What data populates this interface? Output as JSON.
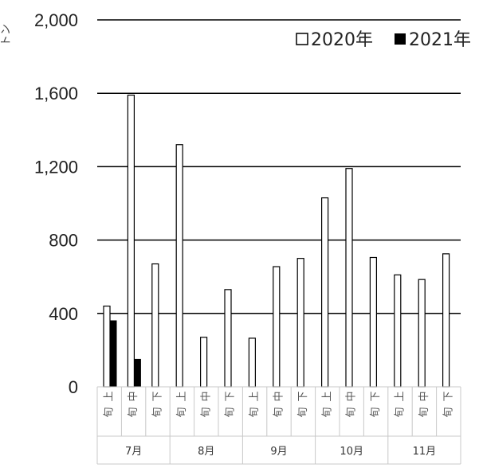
{
  "chart_data": {
    "type": "bar",
    "ylabel": "トン",
    "ylim": [
      0,
      2000
    ],
    "yticks": [
      0,
      400,
      800,
      1200,
      1600,
      2000
    ],
    "ytick_labels": [
      "0",
      "400",
      "800",
      "1,200",
      "1,600",
      "2,000"
    ],
    "grid": true,
    "legend_position": "top-right",
    "months": [
      "7月",
      "8月",
      "9月",
      "10月",
      "11月"
    ],
    "periods": [
      "上旬",
      "中旬",
      "下旬"
    ],
    "categories": [
      "7月上旬",
      "7月中旬",
      "7月下旬",
      "8月上旬",
      "8月中旬",
      "8月下旬",
      "9月上旬",
      "9月中旬",
      "9月下旬",
      "10月上旬",
      "10月中旬",
      "10月下旬",
      "11月上旬",
      "11月中旬",
      "11月下旬"
    ],
    "series": [
      {
        "name": "2020年",
        "color": "#ffffff",
        "stroke": "#000000",
        "values": [
          440,
          1590,
          670,
          1320,
          270,
          530,
          265,
          655,
          700,
          1030,
          1190,
          705,
          610,
          585,
          725
        ]
      },
      {
        "name": "2021年",
        "color": "#000000",
        "stroke": "#000000",
        "values": [
          360,
          150,
          null,
          null,
          null,
          null,
          null,
          null,
          null,
          null,
          null,
          null,
          null,
          null,
          null
        ]
      }
    ]
  }
}
